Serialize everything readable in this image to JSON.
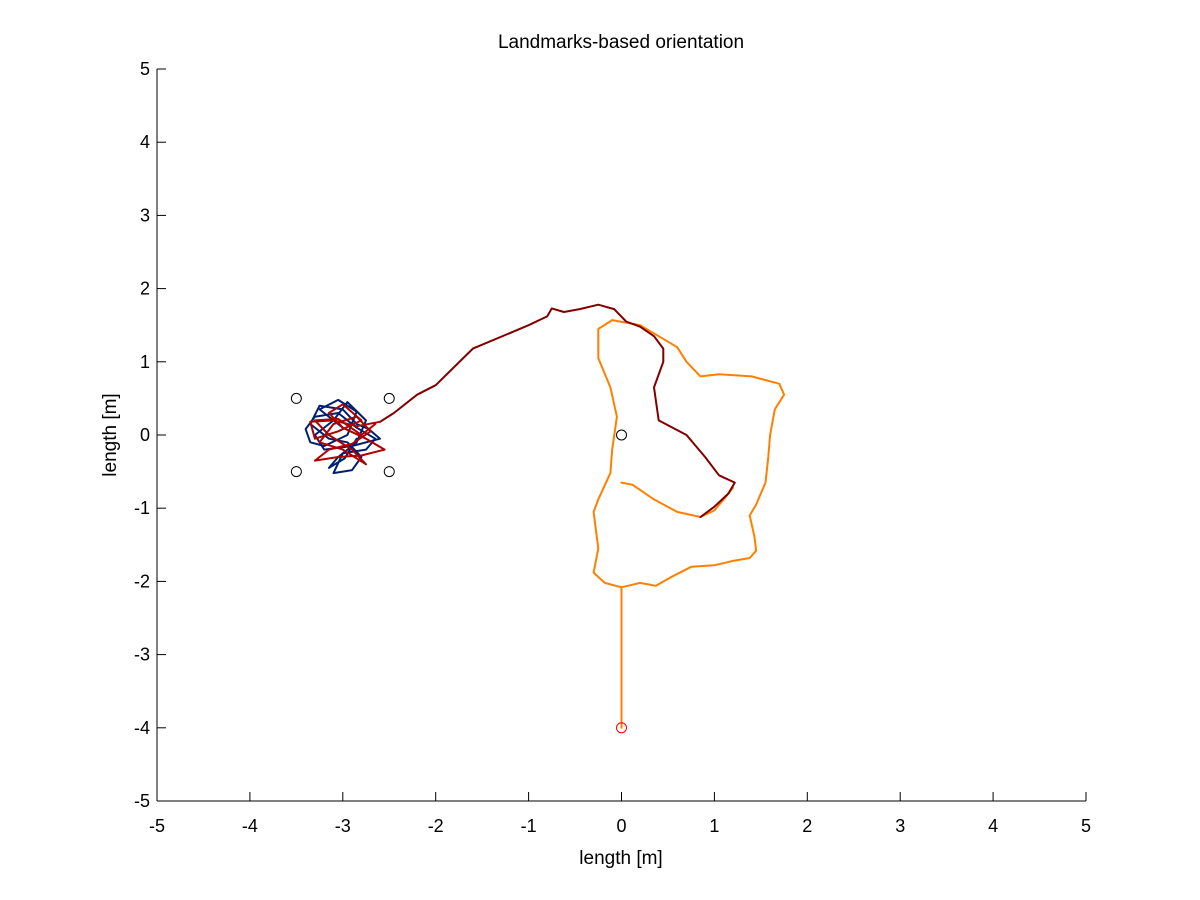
{
  "chart_data": {
    "type": "line",
    "title": "Landmarks-based orientation",
    "xlabel": "length [m]",
    "ylabel": "length [m]",
    "xlim": [
      -5,
      5
    ],
    "ylim": [
      -5,
      5
    ],
    "xticks": [
      "-5",
      "-4",
      "-3",
      "-2",
      "-1",
      "0",
      "1",
      "2",
      "3",
      "4",
      "5"
    ],
    "yticks": [
      "-5",
      "-4",
      "-3",
      "-2",
      "-1",
      "0",
      "1",
      "2",
      "3",
      "4",
      "5"
    ],
    "grid": false,
    "legend": "none",
    "colors": {
      "orange": "#ff8000",
      "darkred": "#800000",
      "navy": "#00206e",
      "red": "#b00000",
      "start": "#ff0000"
    },
    "series": [
      {
        "color_key": "orange",
        "points": [
          [
            0,
            -4
          ],
          [
            0,
            -2.08
          ],
          [
            0.2,
            -2.02
          ],
          [
            0.37,
            -2.06
          ],
          [
            0.55,
            -1.93
          ],
          [
            0.75,
            -1.8
          ],
          [
            1.0,
            -1.78
          ],
          [
            1.2,
            -1.72
          ],
          [
            1.38,
            -1.68
          ],
          [
            1.45,
            -1.58
          ],
          [
            1.43,
            -1.38
          ],
          [
            1.38,
            -1.1
          ],
          [
            1.45,
            -0.95
          ],
          [
            1.55,
            -0.65
          ],
          [
            1.58,
            -0.3
          ],
          [
            1.6,
            0.0
          ],
          [
            1.65,
            0.35
          ],
          [
            1.75,
            0.55
          ],
          [
            1.7,
            0.7
          ],
          [
            1.4,
            0.8
          ],
          [
            1.05,
            0.83
          ],
          [
            0.85,
            0.8
          ],
          [
            0.7,
            1.0
          ],
          [
            0.6,
            1.2
          ],
          [
            0.4,
            1.35
          ],
          [
            0.2,
            1.5
          ],
          [
            -0.1,
            1.57
          ],
          [
            -0.25,
            1.45
          ],
          [
            -0.25,
            1.05
          ],
          [
            -0.12,
            0.65
          ],
          [
            -0.05,
            0.25
          ],
          [
            -0.1,
            -0.2
          ],
          [
            -0.12,
            -0.52
          ],
          [
            -0.25,
            -0.88
          ],
          [
            -0.3,
            -1.05
          ],
          [
            -0.25,
            -1.55
          ],
          [
            -0.3,
            -1.88
          ],
          [
            -0.18,
            -2.02
          ],
          [
            0,
            -2.08
          ]
        ]
      },
      {
        "color_key": "orange",
        "points": [
          [
            0,
            -0.65
          ],
          [
            0.12,
            -0.68
          ],
          [
            0.35,
            -0.88
          ],
          [
            0.6,
            -1.05
          ],
          [
            0.85,
            -1.12
          ],
          [
            1.0,
            -1.03
          ],
          [
            1.12,
            -0.85
          ],
          [
            1.2,
            -0.72
          ]
        ]
      },
      {
        "color_key": "darkred",
        "points": [
          [
            -2.6,
            0.18
          ],
          [
            -2.45,
            0.3
          ],
          [
            -2.2,
            0.55
          ],
          [
            -2.0,
            0.68
          ],
          [
            -1.6,
            1.18
          ],
          [
            -1.0,
            1.5
          ],
          [
            -0.8,
            1.62
          ],
          [
            -0.75,
            1.73
          ],
          [
            -0.62,
            1.68
          ],
          [
            -0.45,
            1.72
          ],
          [
            -0.25,
            1.78
          ],
          [
            -0.08,
            1.72
          ],
          [
            0.05,
            1.55
          ],
          [
            0.2,
            1.48
          ],
          [
            0.35,
            1.35
          ],
          [
            0.45,
            1.18
          ],
          [
            0.45,
            1.0
          ],
          [
            0.35,
            0.65
          ],
          [
            0.4,
            0.2
          ],
          [
            0.7,
            0.0
          ],
          [
            0.9,
            -0.3
          ],
          [
            1.05,
            -0.55
          ],
          [
            1.22,
            -0.65
          ],
          [
            1.15,
            -0.8
          ],
          [
            1.0,
            -0.98
          ],
          [
            0.85,
            -1.12
          ]
        ]
      },
      {
        "color_key": "navy",
        "points": [
          [
            -3.0,
            0.1
          ],
          [
            -3.25,
            0.35
          ],
          [
            -3.05,
            0.48
          ],
          [
            -2.85,
            0.32
          ],
          [
            -2.95,
            0.0
          ],
          [
            -3.2,
            -0.15
          ],
          [
            -3.35,
            -0.1
          ],
          [
            -3.4,
            0.08
          ],
          [
            -3.3,
            0.25
          ],
          [
            -3.05,
            0.3
          ],
          [
            -2.85,
            0.1
          ],
          [
            -2.65,
            -0.05
          ],
          [
            -2.75,
            -0.2
          ],
          [
            -3.0,
            -0.25
          ],
          [
            -3.1,
            -0.52
          ],
          [
            -2.9,
            -0.48
          ],
          [
            -2.8,
            -0.3
          ],
          [
            -2.95,
            -0.1
          ],
          [
            -3.15,
            -0.05
          ],
          [
            -3.35,
            0.15
          ],
          [
            -3.25,
            0.4
          ],
          [
            -3.0,
            0.35
          ],
          [
            -2.85,
            0.15
          ],
          [
            -2.72,
            0.08
          ],
          [
            -2.6,
            -0.05
          ],
          [
            -2.9,
            -0.15
          ],
          [
            -3.2,
            -0.2
          ],
          [
            -3.3,
            0.0
          ],
          [
            -3.1,
            0.2
          ],
          [
            -2.95,
            0.45
          ],
          [
            -2.75,
            0.2
          ],
          [
            -2.85,
            -0.1
          ],
          [
            -3.05,
            -0.3
          ],
          [
            -3.15,
            -0.45
          ],
          [
            -2.98,
            -0.32
          ],
          [
            -2.85,
            -0.05
          ]
        ]
      },
      {
        "color_key": "red",
        "points": [
          [
            -2.6,
            0.18
          ],
          [
            -2.85,
            0.12
          ],
          [
            -3.1,
            0.2
          ],
          [
            -3.35,
            0.18
          ],
          [
            -3.3,
            -0.05
          ],
          [
            -3.05,
            0.05
          ],
          [
            -2.8,
            0.2
          ],
          [
            -3.0,
            0.42
          ],
          [
            -3.15,
            0.3
          ],
          [
            -3.0,
            0.1
          ],
          [
            -2.75,
            -0.05
          ],
          [
            -2.55,
            -0.2
          ],
          [
            -2.8,
            -0.28
          ],
          [
            -3.05,
            -0.3
          ],
          [
            -3.3,
            -0.35
          ],
          [
            -3.15,
            -0.2
          ],
          [
            -2.9,
            -0.12
          ],
          [
            -2.7,
            0.05
          ],
          [
            -2.85,
            0.25
          ],
          [
            -3.1,
            0.15
          ],
          [
            -3.25,
            -0.1
          ],
          [
            -3.0,
            -0.2
          ],
          [
            -2.75,
            -0.4
          ],
          [
            -2.9,
            -0.2
          ],
          [
            -3.15,
            0.0
          ],
          [
            -3.3,
            0.2
          ],
          [
            -3.05,
            0.22
          ],
          [
            -2.8,
            0.0
          ],
          [
            -2.65,
            0.15
          ]
        ]
      }
    ],
    "markers": [
      {
        "x": -3.5,
        "y": 0.5,
        "color_key": "black"
      },
      {
        "x": -2.5,
        "y": 0.5,
        "color_key": "black"
      },
      {
        "x": -3.5,
        "y": -0.5,
        "color_key": "black"
      },
      {
        "x": -2.5,
        "y": -0.5,
        "color_key": "black"
      },
      {
        "x": 0,
        "y": 0,
        "color_key": "black"
      },
      {
        "x": 0,
        "y": -4,
        "color_key": "start"
      }
    ]
  }
}
